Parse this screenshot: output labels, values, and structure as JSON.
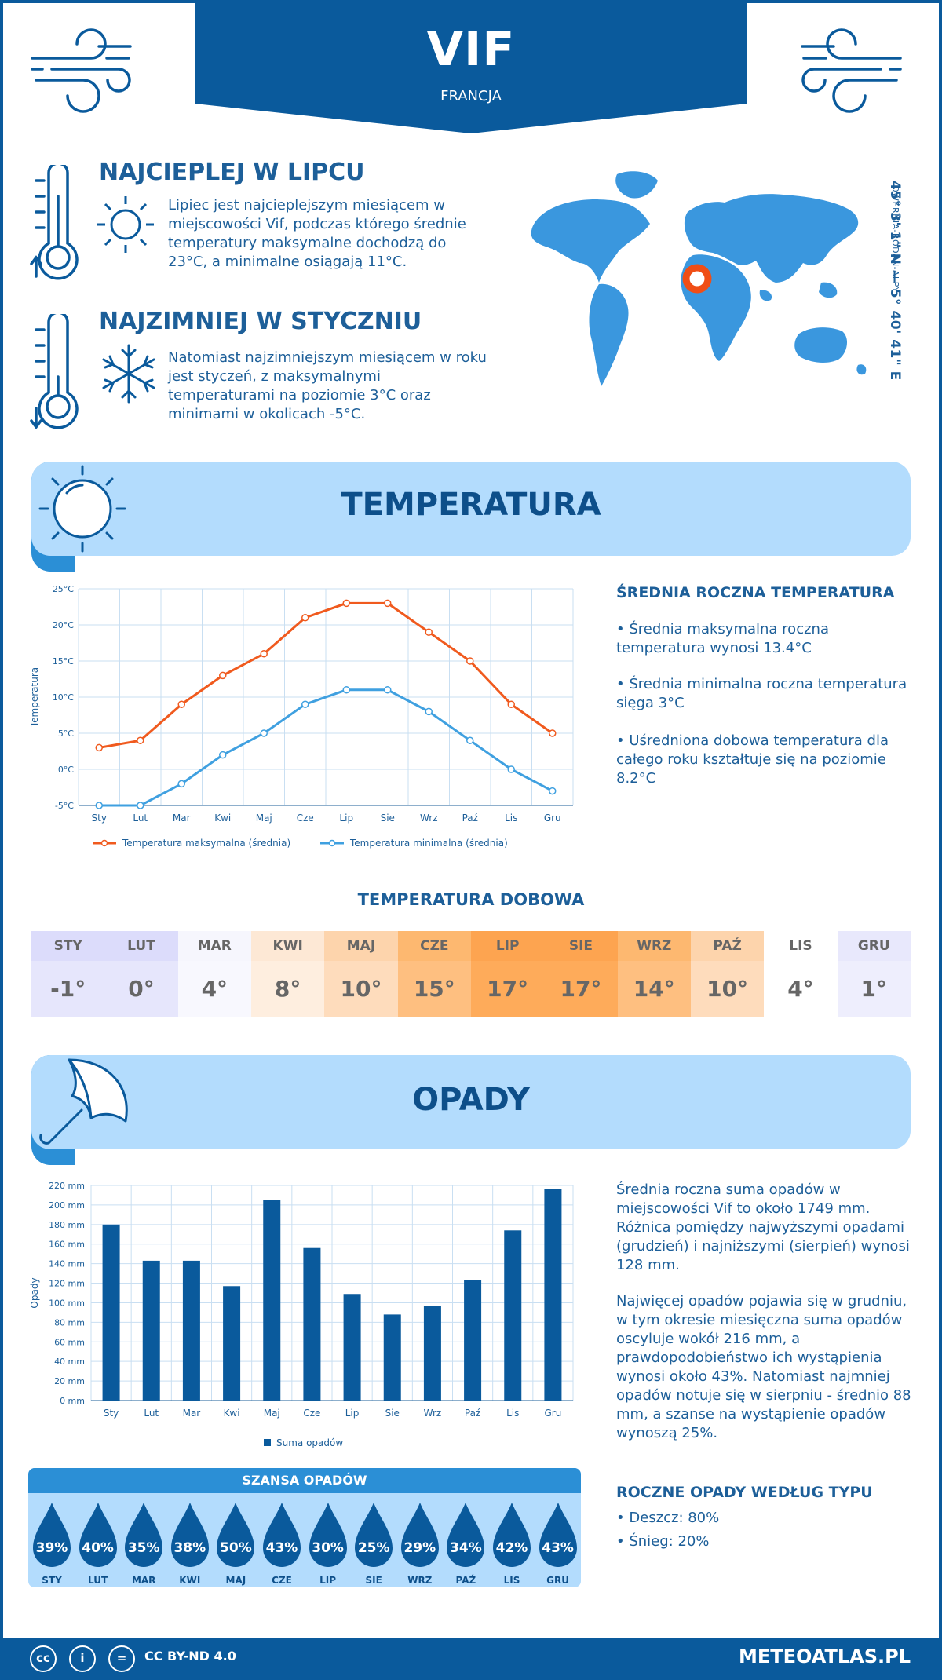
{
  "header": {
    "city": "VIF",
    "country": "FRANCJA"
  },
  "facts": {
    "warm": {
      "title": "NAJCIEPLEJ W LIPCU",
      "text": "Lipiec jest najcieplejszym miesiącem w miejscowości Vif, podczas którego średnie temperatury maksymalne dochodzą do 23°C, a minimalne osiągają 11°C."
    },
    "cold": {
      "title": "NAJZIMNIEJ W STYCZNIU",
      "text": "Natomiast najzimniejszym miesiącem w roku jest styczeń, z maksymalnymi temperaturami na poziomie 3°C oraz minimami w okolicach -5°C."
    }
  },
  "location": {
    "coords": "45° 3' 1\" N — 5° 40' 41\" E",
    "region": "OWERNIA-RODAN-ALPY"
  },
  "temperature_section": {
    "title": "TEMPERATURA",
    "summary_title": "ŚREDNIA ROCZNA TEMPERATURA",
    "bullets": [
      "• Średnia maksymalna roczna temperatura wynosi 13.4°C",
      "• Średnia minimalna roczna temperatura sięga 3°C",
      "• Uśredniona dobowa temperatura dla całego roku kształtuje się na poziomie 8.2°C"
    ]
  },
  "daily": {
    "title": "TEMPERATURA DOBOWA",
    "months": [
      "STY",
      "LUT",
      "MAR",
      "KWI",
      "MAJ",
      "CZE",
      "LIP",
      "SIE",
      "WRZ",
      "PAŹ",
      "LIS",
      "GRU"
    ],
    "values": [
      "-1°",
      "0°",
      "4°",
      "8°",
      "10°",
      "15°",
      "17°",
      "17°",
      "14°",
      "10°",
      "4°",
      "1°"
    ],
    "header_colors": [
      "#dcdcfb",
      "#dcdcfb",
      "#f6f6fd",
      "#fde8d5",
      "#fdd4ac",
      "#fdb870",
      "#fda450",
      "#fda450",
      "#fdb870",
      "#fdd4ac",
      "#ffffff",
      "#e8e8fc"
    ],
    "value_colors": [
      "#e6e6fc",
      "#e6e6fc",
      "#f8f8fe",
      "#feeedf",
      "#fedcbc",
      "#febf80",
      "#feab5a",
      "#feab5a",
      "#febf80",
      "#fedcbc",
      "#ffffff",
      "#eeeefd"
    ]
  },
  "precip_section": {
    "title": "OPADY",
    "paragraph1": "Średnia roczna suma opadów w miejscowości Vif to około 1749 mm. Różnica pomiędzy najwyższymi opadami (grudzień) i najniższymi (sierpień) wynosi 128 mm.",
    "paragraph2": "Najwięcej opadów pojawia się w grudniu, w tym okresie miesięczna suma opadów oscyluje wokół 216 mm, a prawdopodobieństwo ich wystąpienia wynosi około 43%. Natomiast najmniej opadów notuje się w sierpniu - średnio 88 mm, a szanse na wystąpienie opadów wynoszą 25%.",
    "type_title": "ROCZNE OPADY WEDŁUG TYPU",
    "types": [
      "• Deszcz: 80%",
      "• Śnieg: 20%"
    ]
  },
  "chance": {
    "title": "SZANSA OPADÓW",
    "months": [
      "STY",
      "LUT",
      "MAR",
      "KWI",
      "MAJ",
      "CZE",
      "LIP",
      "SIE",
      "WRZ",
      "PAŹ",
      "LIS",
      "GRU"
    ],
    "values": [
      "39%",
      "40%",
      "35%",
      "38%",
      "50%",
      "43%",
      "30%",
      "25%",
      "29%",
      "34%",
      "42%",
      "43%"
    ]
  },
  "footer": {
    "license": "CC BY-ND 4.0",
    "site": "METEOATLAS.PL"
  },
  "colors": {
    "primary": "#0a5a9c",
    "banner": "#b3dcfd",
    "accent": "#2b8fd6",
    "max_line": "#f05a1e",
    "min_line": "#3fa0e0",
    "marker": "#f04e16"
  },
  "chart_data": [
    {
      "type": "line",
      "categories": [
        "Sty",
        "Lut",
        "Mar",
        "Kwi",
        "Maj",
        "Cze",
        "Lip",
        "Sie",
        "Wrz",
        "Paź",
        "Lis",
        "Gru"
      ],
      "series": [
        {
          "name": "Temperatura maksymalna (średnia)",
          "values": [
            3,
            4,
            9,
            13,
            16,
            21,
            23,
            23,
            19,
            15,
            9,
            5
          ]
        },
        {
          "name": "Temperatura minimalna (średnia)",
          "values": [
            -5,
            -5,
            -2,
            2,
            5,
            9,
            11,
            11,
            8,
            4,
            0,
            -3
          ]
        }
      ],
      "ylabel": "Temperatura",
      "ylim": [
        -5,
        25
      ],
      "yticks": [
        "-5°C",
        "0°C",
        "5°C",
        "10°C",
        "15°C",
        "20°C",
        "25°C"
      ],
      "grid": true,
      "legend": "bottom"
    },
    {
      "type": "bar",
      "categories": [
        "Sty",
        "Lut",
        "Mar",
        "Kwi",
        "Maj",
        "Cze",
        "Lip",
        "Sie",
        "Wrz",
        "Paź",
        "Lis",
        "Gru"
      ],
      "series": [
        {
          "name": "Suma opadów",
          "values": [
            180,
            143,
            143,
            117,
            205,
            156,
            109,
            88,
            97,
            123,
            174,
            216
          ]
        }
      ],
      "ylabel": "Opady",
      "ylim": [
        0,
        220
      ],
      "yticks": [
        "0 mm",
        "20 mm",
        "40 mm",
        "60 mm",
        "80 mm",
        "100 mm",
        "120 mm",
        "140 mm",
        "160 mm",
        "180 mm",
        "200 mm",
        "220 mm"
      ],
      "grid": true,
      "legend": "bottom"
    }
  ]
}
